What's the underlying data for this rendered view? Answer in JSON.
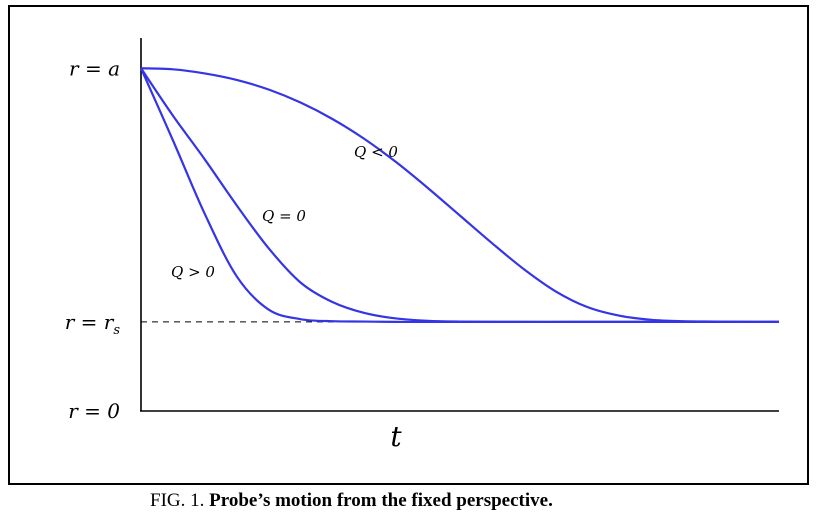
{
  "chart_data": {
    "type": "line",
    "title": "",
    "xlabel": "t",
    "ylabel": "",
    "y_tick_labels": [
      {
        "label": "r = a",
        "value": 1.0
      },
      {
        "label": "r = r_s",
        "value": 0.26
      },
      {
        "label": "r = 0",
        "value": 0.0
      }
    ],
    "xlim": [
      0,
      1
    ],
    "ylim": [
      0,
      1.1
    ],
    "reference_line": {
      "y": 0.26,
      "style": "dashed"
    },
    "color": "#3535e6",
    "series": [
      {
        "name": "Q < 0",
        "x": [
          0,
          0.05,
          0.1,
          0.15,
          0.2,
          0.25,
          0.3,
          0.35,
          0.4,
          0.45,
          0.5,
          0.55,
          0.6,
          0.65,
          0.7,
          0.75,
          0.8,
          0.85,
          0.9,
          0.95,
          1.0
        ],
        "y": [
          1.0,
          0.997,
          0.985,
          0.966,
          0.938,
          0.9,
          0.852,
          0.794,
          0.726,
          0.65,
          0.57,
          0.49,
          0.414,
          0.349,
          0.303,
          0.278,
          0.266,
          0.262,
          0.261,
          0.26,
          0.26
        ]
      },
      {
        "name": "Q = 0",
        "x": [
          0,
          0.05,
          0.1,
          0.15,
          0.2,
          0.25,
          0.3,
          0.35,
          0.4,
          0.45,
          0.5,
          0.6,
          0.7,
          0.8,
          0.9,
          1.0
        ],
        "y": [
          1.0,
          0.862,
          0.734,
          0.6,
          0.475,
          0.375,
          0.318,
          0.286,
          0.27,
          0.263,
          0.261,
          0.26,
          0.26,
          0.26,
          0.26,
          0.26
        ]
      },
      {
        "name": "Q > 0",
        "x": [
          0,
          0.05,
          0.1,
          0.15,
          0.2,
          0.25,
          0.3,
          0.35,
          0.4,
          0.45,
          0.5,
          0.6,
          0.7,
          0.8,
          0.9,
          1.0
        ],
        "y": [
          1.0,
          0.79,
          0.575,
          0.393,
          0.296,
          0.268,
          0.262,
          0.261,
          0.26,
          0.26,
          0.26,
          0.26,
          0.26,
          0.26,
          0.26,
          0.26
        ]
      }
    ],
    "grid": false,
    "legend": "none"
  },
  "caption": {
    "prefix": "FIG. 1.",
    "text": "Probe’s motion from the fixed perspective."
  }
}
